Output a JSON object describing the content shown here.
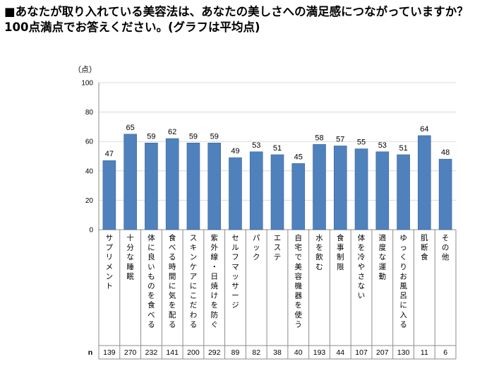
{
  "title": "■あなたが取り入れている美容法は、あなたの美しさへの満足感につながっていますか？100点満点でお答えください。(グラフは平均点)",
  "unit_label": "（点）",
  "n_label": "n",
  "colors": {
    "bar": "#4F81BD",
    "bar_edge": "#3A6796",
    "grid": "#D9D9D9",
    "axis": "#8C8C8C"
  },
  "chart_data": {
    "type": "bar",
    "title": "あなたが取り入れている美容法は、あなたの美しさへの満足感につながっていますか？100点満点でお答えください。(グラフは平均点)",
    "ylabel": "（点）",
    "xlabel": "",
    "ylim": [
      0,
      100
    ],
    "yticks": [
      0,
      20,
      40,
      60,
      80,
      100
    ],
    "grid": true,
    "categories": [
      "サプリメント",
      "十分な睡眠",
      "体に良いものを食べる",
      "食べる時間に気を配る",
      "スキンケアにこだわる",
      "紫外線・日焼けを防ぐ",
      "セルフマッサージ",
      "パック",
      "エステ",
      "自宅で美容機器を使う",
      "水を飲む",
      "食事制限",
      "体を冷やさない",
      "適度な運動",
      "ゆっくりお風呂に入る",
      "肌断食",
      "その他"
    ],
    "values": [
      47,
      65,
      59,
      62,
      59,
      59,
      49,
      53,
      51,
      45,
      58,
      57,
      55,
      53,
      51,
      64,
      48
    ],
    "n": [
      139,
      270,
      232,
      141,
      200,
      292,
      89,
      82,
      38,
      40,
      193,
      44,
      107,
      207,
      130,
      11,
      6
    ]
  }
}
